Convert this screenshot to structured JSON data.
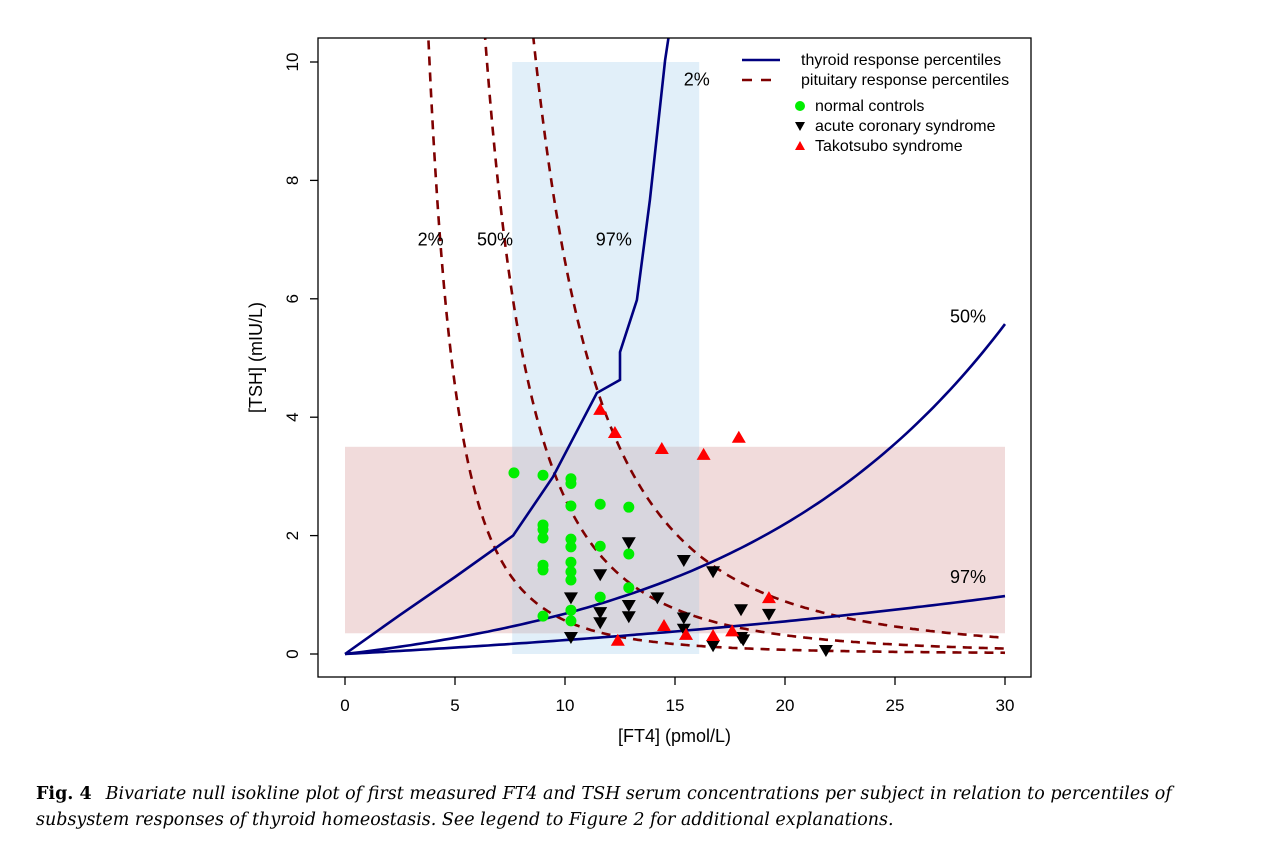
{
  "chart_data": {
    "type": "scatter",
    "title": "",
    "xlabel": "[FT4] (pmol/L)",
    "ylabel": "[TSH] (mIU/L)",
    "xlim": [
      0,
      30
    ],
    "ylim": [
      0,
      10
    ],
    "xticks": [
      0,
      5,
      10,
      15,
      20,
      25,
      30
    ],
    "yticks": [
      0,
      2,
      4,
      6,
      8,
      10
    ],
    "grid": false,
    "legend_position": "top-right",
    "reference_ranges": [
      {
        "name": "FT4 reference range",
        "color": "#e1eff9",
        "x": [
          7.6,
          16.1
        ],
        "y": [
          0,
          10
        ]
      },
      {
        "name": "TSH reference range",
        "color": "#f0d8d8",
        "x": [
          0,
          30
        ],
        "y": [
          0.35,
          3.5
        ]
      }
    ],
    "thyroid_curves": {
      "legend": "thyroid response percentiles",
      "color": "#00007f",
      "style": "solid",
      "series": [
        {
          "name": "2%",
          "label_at": [
            15.4,
            9.6
          ],
          "points": [
            [
              0,
              0
            ],
            [
              2.5,
              0.66
            ],
            [
              5,
              1.3
            ],
            [
              7.64,
              2.0
            ],
            [
              9.45,
              2.99
            ],
            [
              11.45,
              4.41
            ],
            [
              12.5,
              4.63
            ],
            [
              12.5,
              5.1
            ],
            [
              13.27,
              5.98
            ],
            [
              13.86,
              7.67
            ],
            [
              14.55,
              10.03
            ],
            [
              14.7,
              10.4
            ]
          ]
        },
        {
          "name": "50%",
          "label_at": [
            27.5,
            5.6
          ],
          "model": "exp",
          "a": 0.556,
          "b": 0.08
        },
        {
          "name": "97%",
          "label_at": [
            27.5,
            1.2
          ],
          "model": "exp",
          "a": 0.67,
          "b": 0.03
        }
      ]
    },
    "pituitary_curves": {
      "legend": "pituitary response percentiles",
      "color": "#7f0000",
      "style": "dashed",
      "series": [
        {
          "name": "2%",
          "label_at": [
            3.3,
            6.9
          ],
          "model": "power",
          "A": 566,
          "n": 3.0
        },
        {
          "name": "50%",
          "label_at": [
            6.0,
            6.9
          ],
          "model": "power",
          "A": 2950,
          "n": 3.05
        },
        {
          "name": "97%",
          "label_at": [
            11.4,
            6.9
          ],
          "model": "power",
          "A": 5270,
          "n": 2.9
        }
      ]
    },
    "groups": [
      {
        "name": "normal controls",
        "marker": "circle",
        "color": "#00ee00",
        "points": [
          [
            7.68,
            3.06
          ],
          [
            9.0,
            3.02
          ],
          [
            10.27,
            2.96
          ],
          [
            10.27,
            2.88
          ],
          [
            10.27,
            2.5
          ],
          [
            11.6,
            2.53
          ],
          [
            12.9,
            2.48
          ],
          [
            9.0,
            2.18
          ],
          [
            9.0,
            2.1
          ],
          [
            9.0,
            1.96
          ],
          [
            10.27,
            1.94
          ],
          [
            10.27,
            1.81
          ],
          [
            11.6,
            1.82
          ],
          [
            12.9,
            1.69
          ],
          [
            9.0,
            1.5
          ],
          [
            9.0,
            1.42
          ],
          [
            10.27,
            1.55
          ],
          [
            10.27,
            1.39
          ],
          [
            10.27,
            1.25
          ],
          [
            11.6,
            0.96
          ],
          [
            12.9,
            1.12
          ],
          [
            9.0,
            0.64
          ],
          [
            10.27,
            0.74
          ],
          [
            10.27,
            0.56
          ]
        ]
      },
      {
        "name": "acute coronary syndrome",
        "marker": "triangle-down",
        "color": "#000000",
        "points": [
          [
            10.27,
            0.94
          ],
          [
            11.6,
            1.33
          ],
          [
            11.6,
            0.69
          ],
          [
            11.6,
            0.52
          ],
          [
            12.9,
            1.87
          ],
          [
            12.9,
            0.81
          ],
          [
            12.9,
            0.62
          ],
          [
            10.27,
            0.27
          ],
          [
            15.4,
            1.57
          ],
          [
            16.73,
            1.38
          ],
          [
            14.2,
            0.94
          ],
          [
            15.4,
            0.6
          ],
          [
            15.4,
            0.41
          ],
          [
            18.0,
            0.74
          ],
          [
            19.27,
            0.66
          ],
          [
            16.73,
            0.13
          ],
          [
            18.0,
            0.27
          ],
          [
            18.1,
            0.23
          ],
          [
            21.86,
            0.05
          ]
        ]
      },
      {
        "name": "Takotsubo syndrome",
        "marker": "triangle-up",
        "color": "#ff0000",
        "points": [
          [
            11.6,
            4.14
          ],
          [
            12.27,
            3.75
          ],
          [
            14.4,
            3.48
          ],
          [
            16.3,
            3.38
          ],
          [
            17.9,
            3.67
          ],
          [
            14.5,
            0.49
          ],
          [
            15.5,
            0.34
          ],
          [
            16.73,
            0.32
          ],
          [
            17.6,
            0.4
          ],
          [
            19.27,
            0.96
          ],
          [
            12.4,
            0.24
          ]
        ]
      }
    ]
  },
  "caption": {
    "label": "Fig. 4",
    "text": "Bivariate null isokline plot of first measured FT4 and TSH serum concentrations per subject in relation to percentiles of subsystem responses of thyroid homeostasis. See legend to Figure 2 for additional explanations."
  }
}
